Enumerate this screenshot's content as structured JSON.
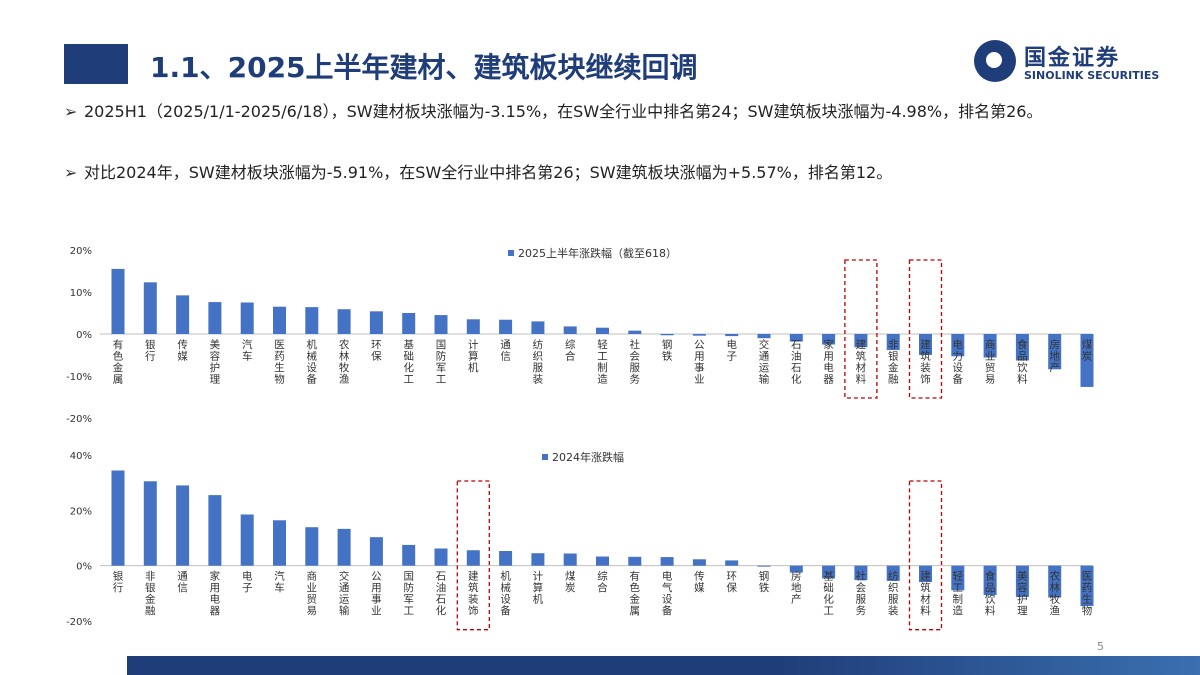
{
  "header": {
    "title": "1.1、2025上半年建材、建筑板块继续回调",
    "logo_cn": "国金证券",
    "logo_en": "SINOLINK SECURITIES"
  },
  "bullets": [
    "2025H1（2025/1/1-2025/6/18），SW建材板块涨幅为-3.15%，在SW全行业中排名第24；SW建筑板块涨幅为-4.98%，排名第26。",
    "对比2024年，SW建材板块涨幅为-5.91%，在SW全行业中排名第26；SW建筑板块涨幅为+5.57%，排名第12。"
  ],
  "page_number": "5",
  "colors": {
    "bar": "#4472c4",
    "highlight": "#c00000",
    "brand": "#1f3d78"
  },
  "chart_data": [
    {
      "type": "bar",
      "legend": "2025上半年涨跌幅（截至618）",
      "ylim": [
        -20,
        20
      ],
      "yticks": [
        "20%",
        "10%",
        "0%",
        "-10%",
        "-20%"
      ],
      "ytick_values": [
        20,
        10,
        0,
        -10,
        -20
      ],
      "categories": [
        "有色金属",
        "银行",
        "传媒",
        "美容护理",
        "汽车",
        "医药生物",
        "机械设备",
        "农林牧渔",
        "环保",
        "基础化工",
        "国防军工",
        "计算机",
        "通信",
        "纺织服装",
        "综合",
        "轻工制造",
        "社会服务",
        "钢铁",
        "公用事业",
        "电子",
        "交通运输",
        "石油石化",
        "家用电器",
        "建筑材料",
        "非银金融",
        "建筑装饰",
        "电力设备",
        "商业贸易",
        "食品饮料",
        "房地产",
        "煤炭"
      ],
      "values": [
        15.5,
        12.3,
        9.2,
        7.6,
        7.5,
        6.5,
        6.4,
        5.9,
        5.4,
        5.0,
        4.5,
        3.5,
        3.4,
        3.0,
        1.8,
        1.5,
        0.8,
        -0.3,
        -0.4,
        -0.5,
        -1.0,
        -1.8,
        -2.5,
        -3.15,
        -3.8,
        -4.98,
        -5.3,
        -5.6,
        -6.3,
        -8.4,
        -12.6
      ],
      "highlight": [
        "建筑材料",
        "建筑装饰"
      ]
    },
    {
      "type": "bar",
      "legend": "2024年涨跌幅",
      "ylim": [
        -20,
        40
      ],
      "yticks": [
        "40%",
        "20%",
        "0%",
        "-20%"
      ],
      "ytick_values": [
        40,
        20,
        0,
        -20
      ],
      "categories": [
        "银行",
        "非银金融",
        "通信",
        "家用电器",
        "电子",
        "汽车",
        "商业贸易",
        "交通运输",
        "公用事业",
        "国防军工",
        "石油石化",
        "建筑装饰",
        "机械设备",
        "计算机",
        "煤炭",
        "综合",
        "有色金属",
        "电气设备",
        "传媒",
        "环保",
        "钢铁",
        "房地产",
        "基础化工",
        "社会服务",
        "纺织服装",
        "建筑材料",
        "轻工制造",
        "食品饮料",
        "美容护理",
        "农林牧渔",
        "医药生物"
      ],
      "values": [
        34.4,
        30.5,
        29.0,
        25.5,
        18.5,
        16.4,
        13.9,
        13.3,
        10.3,
        7.5,
        6.2,
        5.57,
        5.3,
        4.5,
        4.4,
        3.3,
        3.2,
        3.1,
        2.3,
        1.9,
        -0.2,
        -2.5,
        -4.6,
        -5.2,
        -5.5,
        -5.91,
        -8.9,
        -10.6,
        -11.3,
        -11.5,
        -14.6
      ],
      "highlight": [
        "建筑装饰",
        "建筑材料"
      ]
    }
  ]
}
